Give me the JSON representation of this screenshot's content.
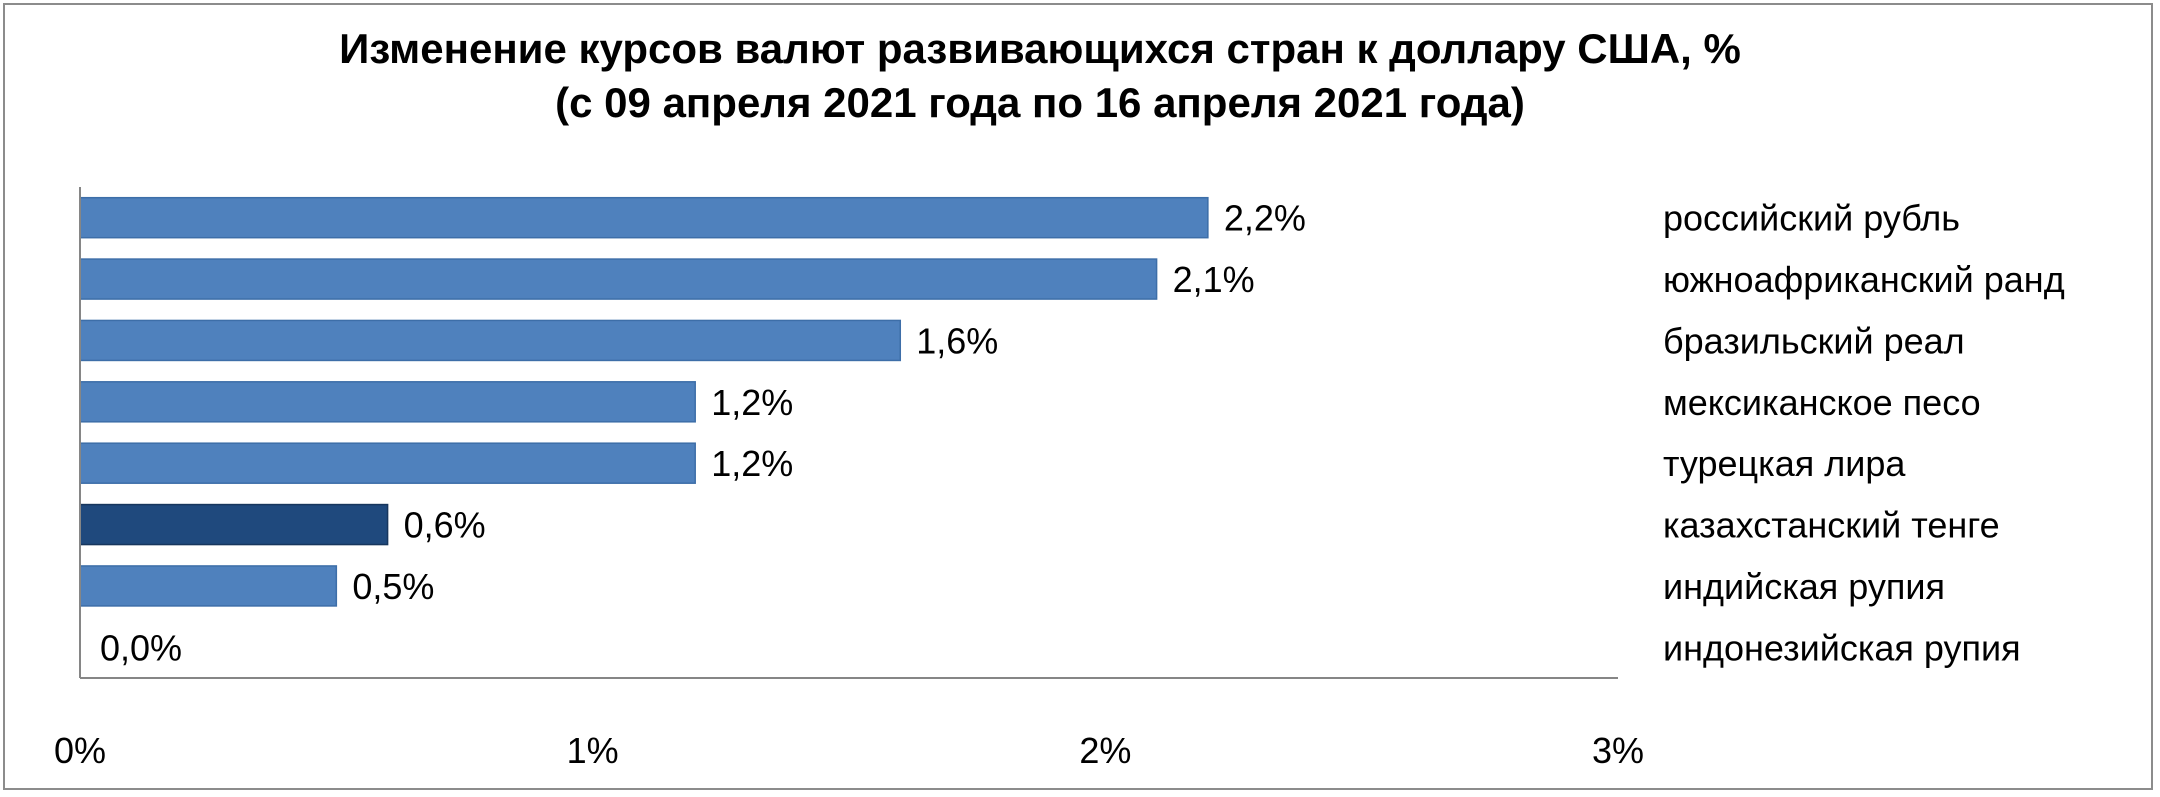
{
  "chart_data": {
    "type": "bar",
    "orientation": "horizontal",
    "title": "Изменение курсов валют развивающихся стран к доллару США, % (с 09 апреля 2021 года по 16 апреля 2021 года)",
    "categories": [
      "российский рубль",
      "южноафриканский ранд",
      "бразильский реал",
      "мексиканское песо",
      "турецкая лира",
      "казахстанский тенге",
      "индийская рупия",
      "индонезийская рупия"
    ],
    "values": [
      2.2,
      2.1,
      1.6,
      1.2,
      1.2,
      0.6,
      0.5,
      0.0
    ],
    "data_labels": [
      "2,2%",
      "2,1%",
      "1,6%",
      "1,2%",
      "1,2%",
      "0,6%",
      "0,5%",
      "0,0%"
    ],
    "x_ticks": [
      "0%",
      "1%",
      "2%",
      "3%"
    ],
    "xlim": [
      0,
      3
    ],
    "grid": false,
    "colors": {
      "bar": "#4f81bd",
      "highlight": "#1f497d",
      "highlight_category": "казахстанский тенге"
    }
  }
}
